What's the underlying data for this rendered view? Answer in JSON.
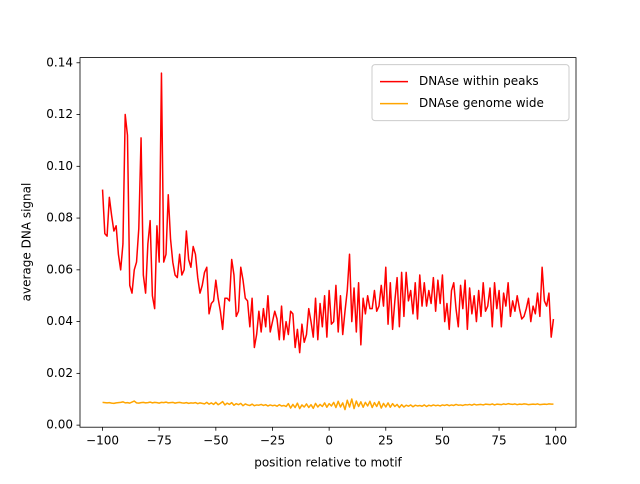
{
  "chart_data": {
    "type": "line",
    "xlabel": "position relative to motif",
    "ylabel": "average DNA signal",
    "x": [
      -100,
      -99,
      -98,
      -97,
      -96,
      -95,
      -94,
      -93,
      -92,
      -91,
      -90,
      -89,
      -88,
      -87,
      -86,
      -85,
      -84,
      -83,
      -82,
      -81,
      -80,
      -79,
      -78,
      -77,
      -76,
      -75,
      -74,
      -73,
      -72,
      -71,
      -70,
      -69,
      -68,
      -67,
      -66,
      -65,
      -64,
      -63,
      -62,
      -61,
      -60,
      -59,
      -58,
      -57,
      -56,
      -55,
      -54,
      -53,
      -52,
      -51,
      -50,
      -49,
      -48,
      -47,
      -46,
      -45,
      -44,
      -43,
      -42,
      -41,
      -40,
      -39,
      -38,
      -37,
      -36,
      -35,
      -34,
      -33,
      -32,
      -31,
      -30,
      -29,
      -28,
      -27,
      -26,
      -25,
      -24,
      -23,
      -22,
      -21,
      -20,
      -19,
      -18,
      -17,
      -16,
      -15,
      -14,
      -13,
      -12,
      -11,
      -10,
      -9,
      -8,
      -7,
      -6,
      -5,
      -4,
      -3,
      -2,
      -1,
      0,
      1,
      2,
      3,
      4,
      5,
      6,
      7,
      8,
      9,
      10,
      11,
      12,
      13,
      14,
      15,
      16,
      17,
      18,
      19,
      20,
      21,
      22,
      23,
      24,
      25,
      26,
      27,
      28,
      29,
      30,
      31,
      32,
      33,
      34,
      35,
      36,
      37,
      38,
      39,
      40,
      41,
      42,
      43,
      44,
      45,
      46,
      47,
      48,
      49,
      50,
      51,
      52,
      53,
      54,
      55,
      56,
      57,
      58,
      59,
      60,
      61,
      62,
      63,
      64,
      65,
      66,
      67,
      68,
      69,
      70,
      71,
      72,
      73,
      74,
      75,
      76,
      77,
      78,
      79,
      80,
      81,
      82,
      83,
      84,
      85,
      86,
      87,
      88,
      89,
      90,
      91,
      92,
      93,
      94,
      95,
      96,
      97,
      98,
      99
    ],
    "series": [
      {
        "name": "DNAse within peaks",
        "color": "#ff0000",
        "values": [
          0.091,
          0.074,
          0.073,
          0.088,
          0.081,
          0.075,
          0.077,
          0.066,
          0.06,
          0.07,
          0.12,
          0.112,
          0.054,
          0.051,
          0.06,
          0.063,
          0.076,
          0.111,
          0.058,
          0.051,
          0.07,
          0.079,
          0.05,
          0.045,
          0.077,
          0.063,
          0.136,
          0.063,
          0.066,
          0.089,
          0.072,
          0.063,
          0.058,
          0.057,
          0.066,
          0.058,
          0.06,
          0.075,
          0.064,
          0.061,
          0.069,
          0.066,
          0.057,
          0.051,
          0.054,
          0.059,
          0.061,
          0.043,
          0.047,
          0.048,
          0.056,
          0.049,
          0.044,
          0.037,
          0.049,
          0.049,
          0.048,
          0.064,
          0.058,
          0.042,
          0.044,
          0.061,
          0.056,
          0.049,
          0.048,
          0.038,
          0.049,
          0.03,
          0.035,
          0.044,
          0.036,
          0.045,
          0.038,
          0.05,
          0.036,
          0.04,
          0.044,
          0.041,
          0.033,
          0.046,
          0.033,
          0.04,
          0.035,
          0.044,
          0.043,
          0.03,
          0.037,
          0.028,
          0.039,
          0.032,
          0.035,
          0.045,
          0.04,
          0.034,
          0.049,
          0.033,
          0.047,
          0.038,
          0.05,
          0.034,
          0.052,
          0.039,
          0.04,
          0.054,
          0.036,
          0.05,
          0.035,
          0.044,
          0.052,
          0.066,
          0.04,
          0.053,
          0.036,
          0.055,
          0.031,
          0.049,
          0.043,
          0.05,
          0.045,
          0.045,
          0.052,
          0.044,
          0.046,
          0.054,
          0.046,
          0.061,
          0.039,
          0.055,
          0.037,
          0.048,
          0.057,
          0.038,
          0.059,
          0.042,
          0.059,
          0.048,
          0.052,
          0.043,
          0.055,
          0.041,
          0.058,
          0.046,
          0.055,
          0.046,
          0.052,
          0.047,
          0.057,
          0.044,
          0.056,
          0.047,
          0.058,
          0.04,
          0.047,
          0.037,
          0.052,
          0.055,
          0.045,
          0.038,
          0.054,
          0.045,
          0.056,
          0.037,
          0.053,
          0.043,
          0.05,
          0.04,
          0.052,
          0.042,
          0.055,
          0.044,
          0.046,
          0.053,
          0.038,
          0.055,
          0.045,
          0.052,
          0.038,
          0.051,
          0.046,
          0.055,
          0.042,
          0.048,
          0.044,
          0.05,
          0.045,
          0.041,
          0.042,
          0.045,
          0.049,
          0.04,
          0.046,
          0.043,
          0.051,
          0.042,
          0.061,
          0.048,
          0.046,
          0.051,
          0.034,
          0.041
        ]
      },
      {
        "name": "DNAse genome wide",
        "color": "#ffa500",
        "values": [
          0.0088,
          0.0087,
          0.0086,
          0.0087,
          0.0085,
          0.0084,
          0.0086,
          0.0087,
          0.0088,
          0.009,
          0.0086,
          0.0087,
          0.0085,
          0.0089,
          0.0093,
          0.0086,
          0.0085,
          0.0087,
          0.0088,
          0.0086,
          0.0087,
          0.0089,
          0.0086,
          0.0088,
          0.0087,
          0.0085,
          0.0088,
          0.0087,
          0.0089,
          0.0086,
          0.0087,
          0.0088,
          0.0085,
          0.0087,
          0.0088,
          0.0086,
          0.0085,
          0.0087,
          0.0084,
          0.0086,
          0.0085,
          0.0087,
          0.0083,
          0.0086,
          0.0084,
          0.0082,
          0.0088,
          0.0081,
          0.0086,
          0.008,
          0.0088,
          0.0079,
          0.0084,
          0.0091,
          0.0078,
          0.0085,
          0.008,
          0.0087,
          0.0077,
          0.0083,
          0.0079,
          0.0084,
          0.0075,
          0.0082,
          0.0078,
          0.0076,
          0.0081,
          0.0075,
          0.0078,
          0.0077,
          0.008,
          0.0076,
          0.0079,
          0.0074,
          0.0078,
          0.0075,
          0.0077,
          0.0073,
          0.0079,
          0.0074,
          0.0076,
          0.0072,
          0.0083,
          0.0066,
          0.008,
          0.0068,
          0.0085,
          0.0064,
          0.0078,
          0.007,
          0.0082,
          0.0068,
          0.0079,
          0.0065,
          0.0084,
          0.007,
          0.008,
          0.0072,
          0.0086,
          0.0069,
          0.0083,
          0.0074,
          0.0088,
          0.0068,
          0.0092,
          0.007,
          0.0086,
          0.006,
          0.0096,
          0.007,
          0.0101,
          0.0064,
          0.0093,
          0.0072,
          0.009,
          0.0069,
          0.0088,
          0.0074,
          0.0092,
          0.0068,
          0.0087,
          0.0072,
          0.0091,
          0.0066,
          0.0084,
          0.007,
          0.0086,
          0.0069,
          0.0083,
          0.0072,
          0.008,
          0.0068,
          0.0079,
          0.007,
          0.0077,
          0.0073,
          0.0078,
          0.0071,
          0.0077,
          0.0074,
          0.0076,
          0.0073,
          0.0078,
          0.0072,
          0.0077,
          0.0074,
          0.0078,
          0.0075,
          0.0077,
          0.0074,
          0.0078,
          0.0076,
          0.0079,
          0.0075,
          0.0078,
          0.0076,
          0.008,
          0.0077,
          0.0078,
          0.0076,
          0.0079,
          0.0078,
          0.008,
          0.0077,
          0.0081,
          0.0078,
          0.0079,
          0.008,
          0.0078,
          0.0081,
          0.008,
          0.0079,
          0.0082,
          0.0078,
          0.0081,
          0.008,
          0.0079,
          0.0082,
          0.008,
          0.0083,
          0.0081,
          0.008,
          0.0082,
          0.0079,
          0.0081,
          0.008,
          0.0082,
          0.0081,
          0.0079,
          0.008,
          0.0081,
          0.008,
          0.0082,
          0.0079,
          0.008,
          0.0081,
          0.008,
          0.0082,
          0.0081,
          0.0081
        ]
      }
    ],
    "xlim": [
      -109.95,
      108.95
    ],
    "xticks": [
      {
        "value": -100,
        "label": "−100"
      },
      {
        "value": -75,
        "label": "−75"
      },
      {
        "value": -50,
        "label": "−50"
      },
      {
        "value": -25,
        "label": "−25"
      },
      0,
      25,
      50,
      75,
      100
    ],
    "ylim": [
      -0.0008,
      0.142
    ],
    "yticks": [
      {
        "value": 0,
        "label": "0.00"
      },
      0.02,
      0.04,
      0.06,
      0.08,
      {
        "value": 0.1,
        "label": "0.10"
      },
      0.12,
      0.14
    ],
    "legend": "upper right",
    "grid": false
  }
}
